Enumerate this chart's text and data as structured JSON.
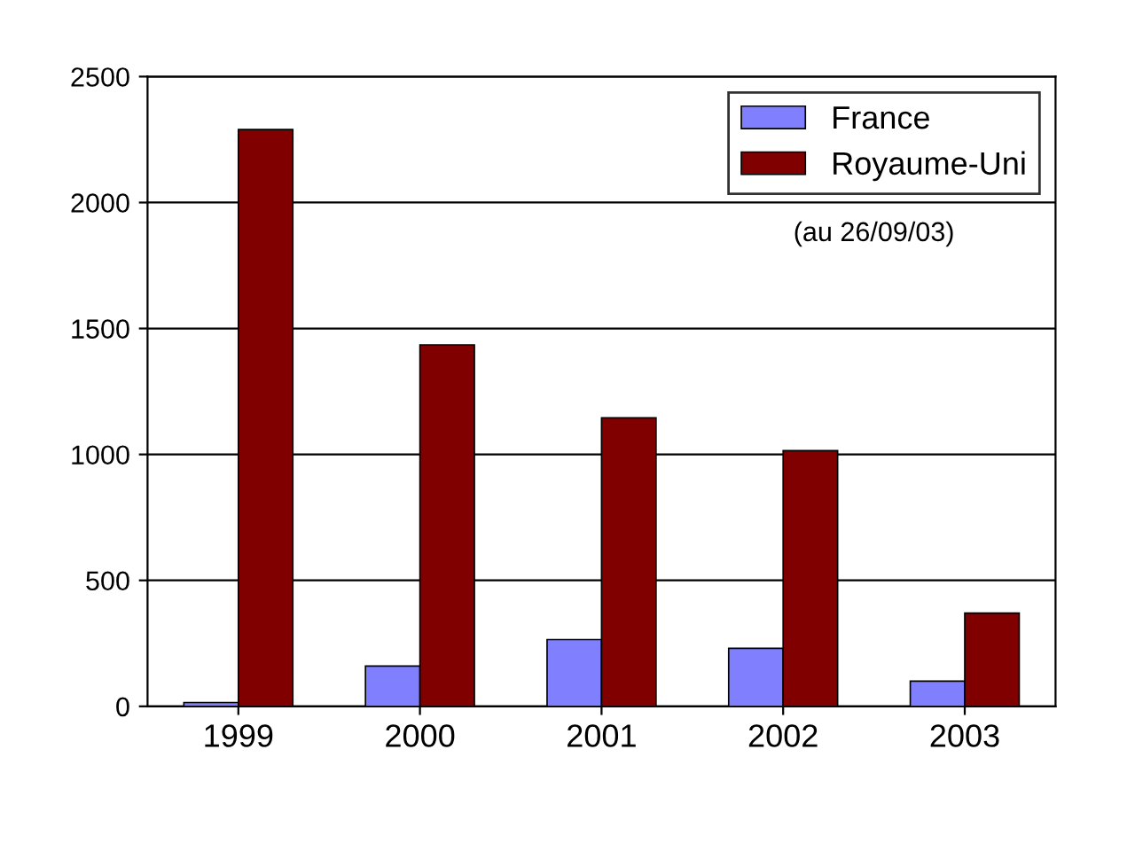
{
  "chart_data": {
    "type": "bar",
    "categories": [
      "1999",
      "2000",
      "2001",
      "2002",
      "2003"
    ],
    "series": [
      {
        "name": "France",
        "color": "#8080ff",
        "values": [
          15,
          160,
          265,
          230,
          100
        ]
      },
      {
        "name": "Royaume-Uni",
        "color": "#800000",
        "values": [
          2290,
          1435,
          1145,
          1015,
          370
        ]
      }
    ],
    "ylim": [
      0,
      2500
    ],
    "yticks": [
      0,
      500,
      1000,
      1500,
      2000,
      2500
    ],
    "grid": "y",
    "legend": "top right",
    "annotations": [
      "(au 26/09/03)"
    ]
  }
}
